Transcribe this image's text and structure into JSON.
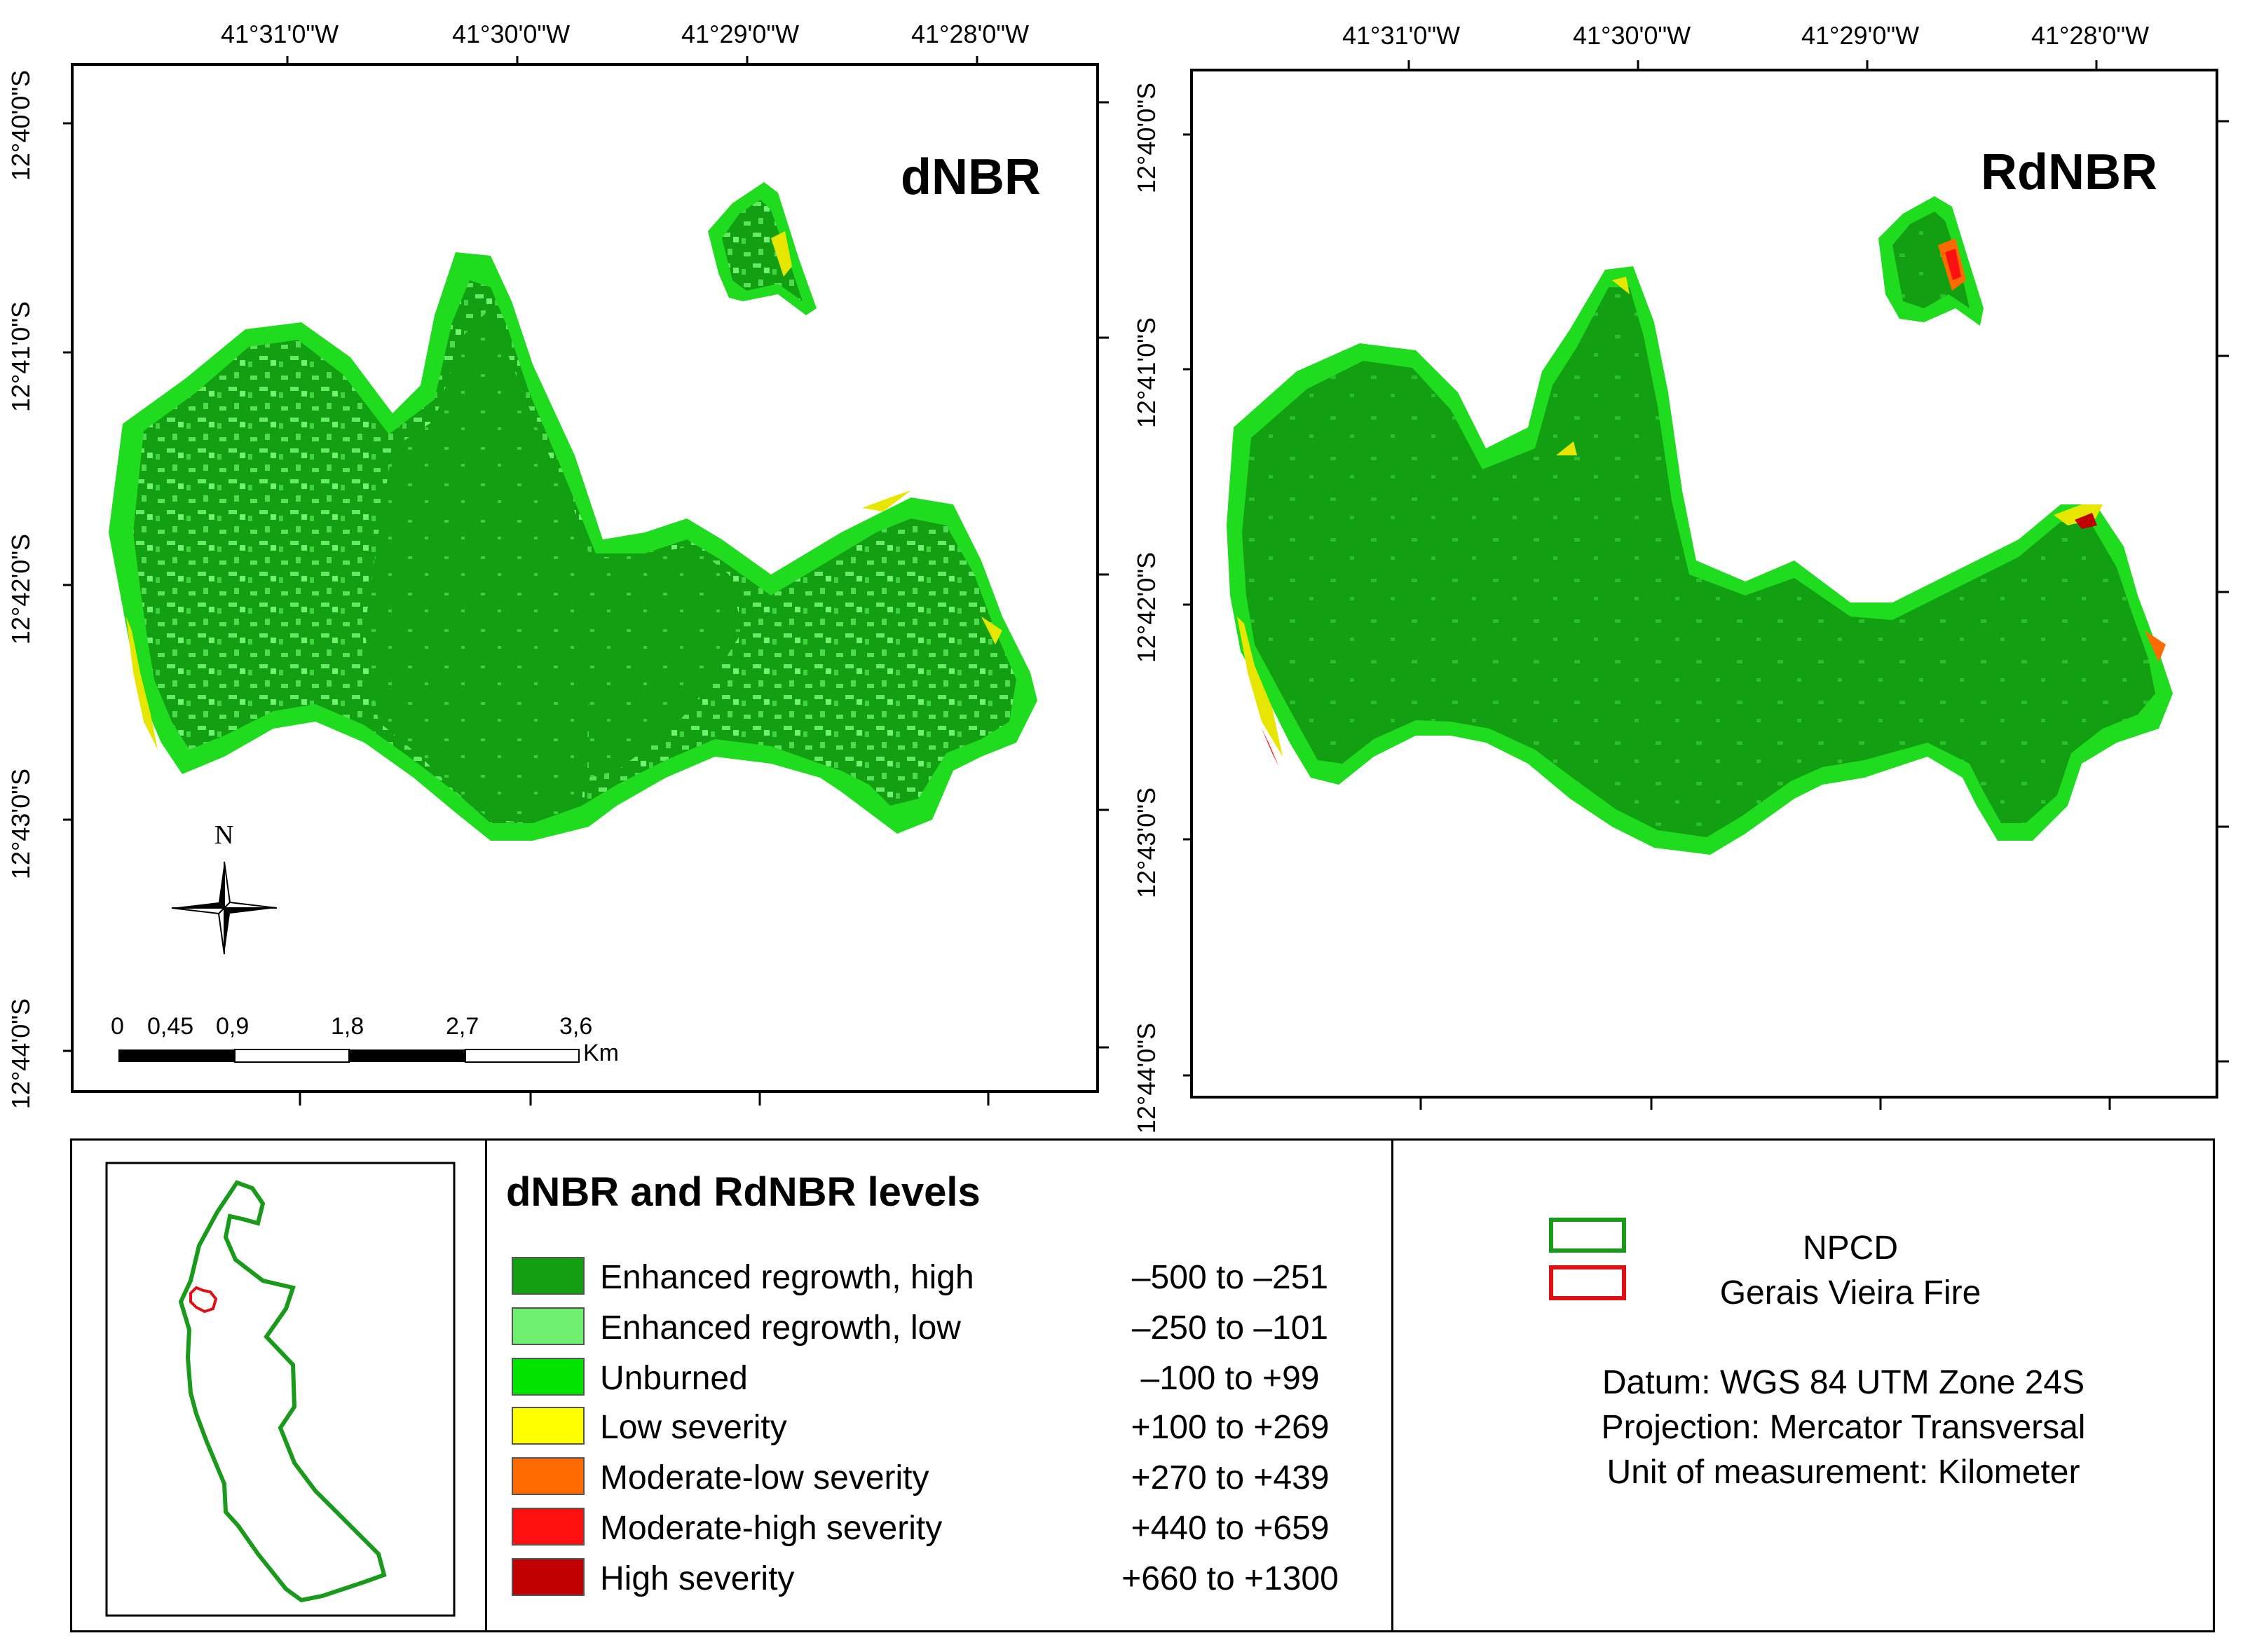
{
  "panels": [
    {
      "title": "dNBR",
      "lon_ticks": [
        "41°31'0\"W",
        "41°30'0\"W",
        "41°29'0\"W",
        "41°28'0\"W"
      ],
      "lat_ticks": [
        "12°40'0\"S",
        "12°41'0\"S",
        "12°42'0\"S",
        "12°43'0\"S",
        "12°44'0\"S"
      ]
    },
    {
      "title": "RdNBR",
      "lon_ticks": [
        "41°31'0\"W",
        "41°30'0\"W",
        "41°29'0\"W",
        "41°28'0\"W"
      ],
      "lat_ticks": [
        "12°40'0\"S",
        "12°41'0\"S",
        "12°42'0\"S",
        "12°43'0\"S",
        "12°44'0\"S"
      ]
    }
  ],
  "north_arrow": {
    "label": "N"
  },
  "scale_bar": {
    "ticks": [
      "0",
      "0,45",
      "0,9",
      "1,8",
      "2,7",
      "3,6"
    ],
    "unit": "Km"
  },
  "legend": {
    "title": "dNBR and RdNBR levels",
    "classes": [
      {
        "label": "Enhanced regrowth, high",
        "range": "–500 to –251",
        "color": "#129f12"
      },
      {
        "label": "Enhanced regrowth, low",
        "range": "–250 to –101",
        "color": "#6ef06e"
      },
      {
        "label": "Unburned",
        "range": "–100 to +99",
        "color": "#00e400"
      },
      {
        "label": "Low severity",
        "range": "+100 to +269",
        "color": "#ffff00"
      },
      {
        "label": "Moderate-low severity",
        "range": "+270 to +439",
        "color": "#ff6a00"
      },
      {
        "label": "Moderate-high severity",
        "range": "+440 to +659",
        "color": "#ff1010"
      },
      {
        "label": "High severity",
        "range": "+660 to +1300",
        "color": "#c00000"
      }
    ]
  },
  "boundaries": [
    {
      "label": "NPCD",
      "color": "#1a9a1a"
    },
    {
      "label": "Gerais Vieira Fire",
      "color": "#e01010"
    }
  ],
  "info": {
    "datum": "Datum: WGS 84 UTM Zone 24S",
    "projection": "Projection: Mercator Transversal",
    "unit": "Unit of measurement: Kilometer"
  }
}
